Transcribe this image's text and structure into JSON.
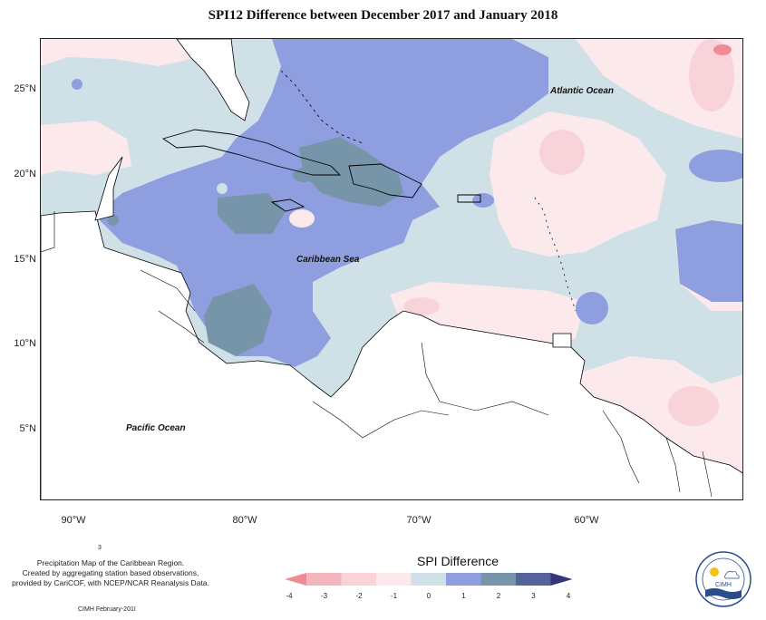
{
  "title": "SPI12 Difference between December 2017 and January 2018",
  "ocean_labels": {
    "atlantic": "Atlantic Ocean",
    "caribbean": "Caribbean Sea",
    "pacific": "Pacific Ocean"
  },
  "lat_ticks": [
    "25°N",
    "20°N",
    "15°N",
    "10°N",
    "5°N"
  ],
  "lon_ticks": [
    "90°W",
    "80°W",
    "70°W",
    "60°W"
  ],
  "legend": {
    "title": "SPI Difference",
    "tick_labels": [
      "-4",
      "-3",
      "-2",
      "-1",
      "0",
      "1",
      "2",
      "3",
      "4"
    ],
    "colors": [
      "#f08a94",
      "#f3b6bd",
      "#f8d4da",
      "#fbe9ec",
      "#cfe0e6",
      "#8f9ede",
      "#7695a8",
      "#56639a",
      "#35357d"
    ]
  },
  "footer": {
    "marker": "3",
    "line1": "Precipitation Map of the Caribbean Region.",
    "line2": "Created by aggregating station based observations,",
    "line3": "provided by CariCOF, with NCEP/NCAR Reanalysis Data.",
    "credit": "CIMH February-201I"
  },
  "logo": {
    "text": "CIMH"
  }
}
